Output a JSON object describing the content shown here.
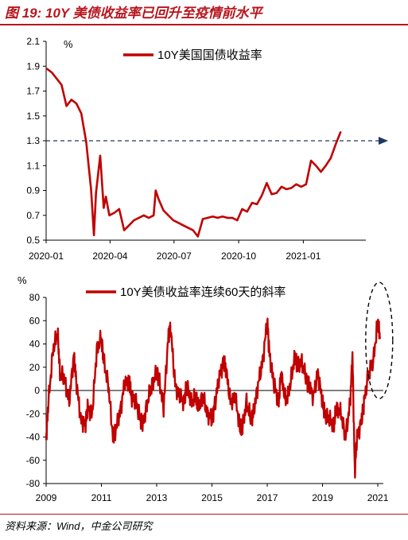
{
  "figure": {
    "title": "图 19: 10Y 美债收益率已回升至疫情前水平",
    "source": "资料来源：Wind，中金公司研究"
  },
  "colors": {
    "series": "#c00000",
    "title": "#b8151d",
    "dashed": "#1f3864"
  },
  "chart_data": [
    {
      "type": "line",
      "unit_label": "%",
      "series": [
        {
          "name": "10Y美国国债收益率",
          "x": [
            "2020-01-02",
            "2020-01-09",
            "2020-01-16",
            "2020-01-23",
            "2020-01-30",
            "2020-02-06",
            "2020-02-13",
            "2020-02-20",
            "2020-02-27",
            "2020-03-05",
            "2020-03-09",
            "2020-03-12",
            "2020-03-18",
            "2020-03-23",
            "2020-03-26",
            "2020-03-31",
            "2020-04-07",
            "2020-04-14",
            "2020-04-21",
            "2020-04-28",
            "2020-05-05",
            "2020-05-12",
            "2020-05-19",
            "2020-05-26",
            "2020-06-02",
            "2020-06-05",
            "2020-06-09",
            "2020-06-16",
            "2020-06-23",
            "2020-06-30",
            "2020-07-07",
            "2020-07-14",
            "2020-07-21",
            "2020-07-28",
            "2020-08-04",
            "2020-08-11",
            "2020-08-18",
            "2020-08-25",
            "2020-09-01",
            "2020-09-08",
            "2020-09-15",
            "2020-09-22",
            "2020-09-29",
            "2020-10-06",
            "2020-10-13",
            "2020-10-20",
            "2020-10-27",
            "2020-11-03",
            "2020-11-10",
            "2020-11-17",
            "2020-11-24",
            "2020-12-01",
            "2020-12-08",
            "2020-12-15",
            "2020-12-22",
            "2020-12-29",
            "2021-01-05",
            "2021-01-12",
            "2021-01-19",
            "2021-01-26",
            "2021-02-02",
            "2021-02-09",
            "2021-02-16",
            "2021-02-23"
          ],
          "y": [
            1.88,
            1.85,
            1.8,
            1.75,
            1.58,
            1.63,
            1.6,
            1.52,
            1.29,
            0.91,
            0.54,
            0.88,
            1.18,
            0.76,
            0.85,
            0.7,
            0.72,
            0.75,
            0.58,
            0.62,
            0.66,
            0.68,
            0.7,
            0.68,
            0.7,
            0.9,
            0.83,
            0.74,
            0.7,
            0.66,
            0.64,
            0.62,
            0.6,
            0.58,
            0.53,
            0.67,
            0.68,
            0.69,
            0.68,
            0.69,
            0.68,
            0.68,
            0.66,
            0.75,
            0.73,
            0.8,
            0.79,
            0.86,
            0.96,
            0.87,
            0.88,
            0.93,
            0.91,
            0.92,
            0.95,
            0.93,
            0.95,
            1.14,
            1.1,
            1.05,
            1.1,
            1.16,
            1.27,
            1.37
          ]
        }
      ],
      "reference_line": {
        "value": 1.3,
        "style": "dashed-arrow"
      },
      "x_ticks": [
        "2020-01",
        "2020-04",
        "2020-07",
        "2020-10",
        "2021-01"
      ],
      "y_ticks": [
        "0.5",
        "0.7",
        "0.9",
        "1.1",
        "1.3",
        "1.5",
        "1.7",
        "1.9",
        "2.1"
      ],
      "ylim": [
        0.5,
        2.1
      ],
      "xlim": [
        "2020-01-01",
        "2021-03-31"
      ],
      "legend": "top",
      "grid": false
    },
    {
      "type": "line",
      "unit_label": "%",
      "series": [
        {
          "name": "10Y美债收益率连续60天的斜率",
          "x": [
            "2009-01",
            "2009-02",
            "2009-04",
            "2009-06",
            "2009-07",
            "2009-09",
            "2009-11",
            "2010-01",
            "2010-02",
            "2010-04",
            "2010-06",
            "2010-07",
            "2010-09",
            "2010-11",
            "2011-01",
            "2011-02",
            "2011-04",
            "2011-06",
            "2011-07",
            "2011-09",
            "2011-11",
            "2012-01",
            "2012-02",
            "2012-04",
            "2012-06",
            "2012-07",
            "2012-09",
            "2012-11",
            "2013-01",
            "2013-02",
            "2013-04",
            "2013-06",
            "2013-07",
            "2013-09",
            "2013-11",
            "2014-01",
            "2014-02",
            "2014-04",
            "2014-06",
            "2014-07",
            "2014-09",
            "2014-11",
            "2015-01",
            "2015-02",
            "2015-04",
            "2015-06",
            "2015-07",
            "2015-09",
            "2015-11",
            "2016-01",
            "2016-02",
            "2016-04",
            "2016-06",
            "2016-07",
            "2016-09",
            "2016-11",
            "2017-01",
            "2017-02",
            "2017-04",
            "2017-06",
            "2017-07",
            "2017-09",
            "2017-11",
            "2018-01",
            "2018-02",
            "2018-04",
            "2018-06",
            "2018-07",
            "2018-09",
            "2018-11",
            "2019-01",
            "2019-02",
            "2019-04",
            "2019-06",
            "2019-07",
            "2019-09",
            "2019-11",
            "2020-01",
            "2020-02",
            "2020-03",
            "2020-04",
            "2020-06",
            "2020-07",
            "2020-09",
            "2020-11",
            "2021-01",
            "2021-02"
          ],
          "y": [
            -42,
            -10,
            35,
            50,
            15,
            10,
            -10,
            30,
            10,
            -25,
            -30,
            -15,
            -20,
            35,
            45,
            25,
            5,
            -40,
            -35,
            -20,
            5,
            10,
            -5,
            -10,
            -25,
            -30,
            -10,
            5,
            15,
            10,
            -15,
            45,
            55,
            5,
            -5,
            -10,
            5,
            -10,
            -5,
            -15,
            -5,
            -20,
            -25,
            -15,
            10,
            25,
            20,
            -10,
            -5,
            -30,
            -35,
            -10,
            -25,
            -20,
            5,
            25,
            60,
            30,
            5,
            -10,
            15,
            -10,
            5,
            30,
            20,
            25,
            10,
            5,
            -5,
            15,
            -10,
            -20,
            -25,
            -30,
            -15,
            -20,
            -40,
            -10,
            30,
            -70,
            -40,
            -25,
            -10,
            15,
            25,
            60,
            45
          ]
        }
      ],
      "x_ticks": [
        "2009",
        "2011",
        "2013",
        "2015",
        "2017",
        "2019",
        "2021"
      ],
      "y_ticks": [
        "-80",
        "-60",
        "-40",
        "-20",
        "0",
        "20",
        "40",
        "60",
        "80"
      ],
      "ylim": [
        -80,
        80
      ],
      "xlim": [
        2009.0,
        2021.2
      ],
      "legend": "top",
      "grid": false,
      "annotation": "dashed-ellipse-around-2021"
    }
  ]
}
